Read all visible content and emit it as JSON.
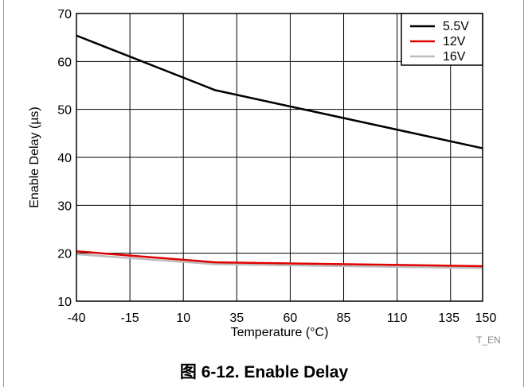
{
  "caption": "图 6-12. Enable Delay",
  "watermark": "T_EN",
  "chart_data": {
    "type": "line",
    "title": "",
    "xlabel": "Temperature (°C)",
    "ylabel": "Enable Delay (µs)",
    "xlim": [
      -40,
      150
    ],
    "ylim": [
      10,
      70
    ],
    "xticks": [
      -40,
      -15,
      10,
      35,
      60,
      85,
      110,
      135,
      150
    ],
    "yticks": [
      10,
      20,
      30,
      40,
      50,
      60,
      70
    ],
    "grid": true,
    "legend_position": "top-right",
    "series": [
      {
        "name": "5.5V",
        "color": "#000000",
        "x": [
          -40,
          25,
          150
        ],
        "y": [
          65.4,
          54.0,
          41.9
        ]
      },
      {
        "name": "12V",
        "color": "#e00000",
        "x": [
          -40,
          25,
          150
        ],
        "y": [
          20.4,
          18.1,
          17.3
        ]
      },
      {
        "name": "16V",
        "color": "#bdbdbd",
        "x": [
          -40,
          25,
          150
        ],
        "y": [
          19.8,
          17.7,
          16.9
        ]
      }
    ]
  }
}
